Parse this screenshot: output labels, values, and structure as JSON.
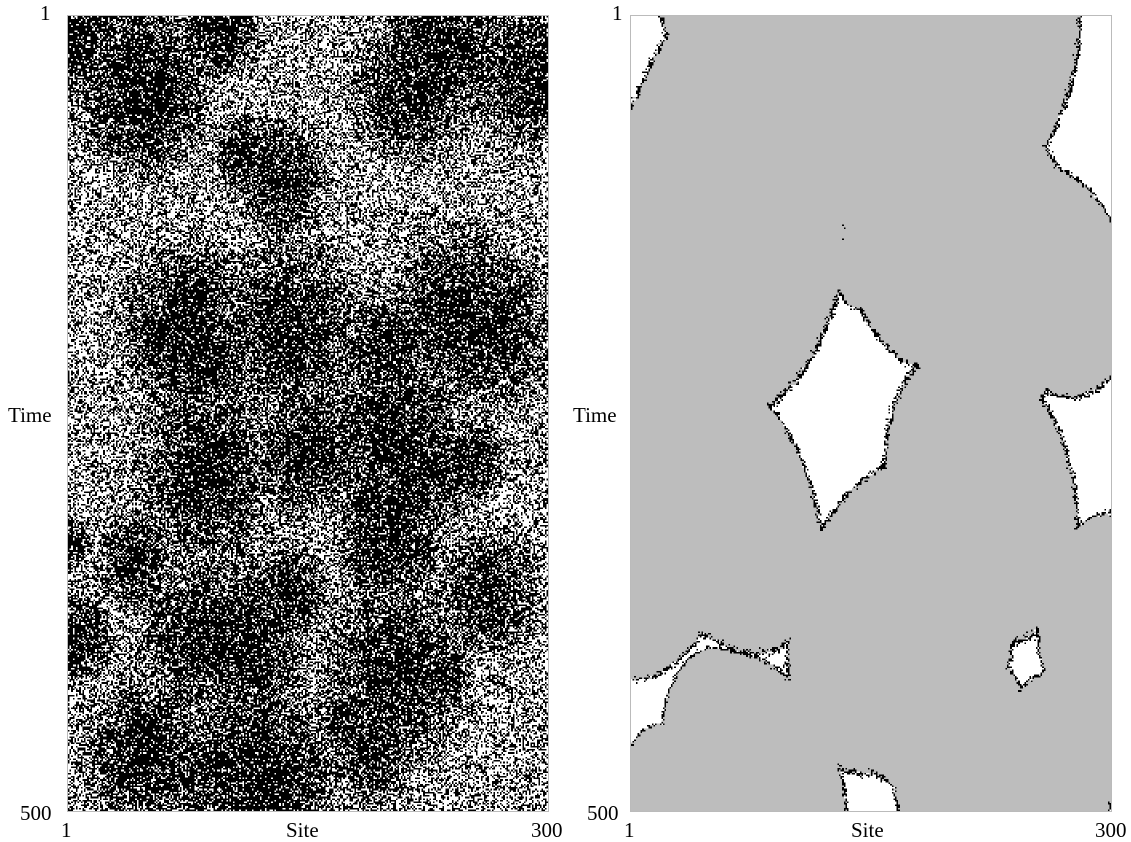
{
  "panels": [
    {
      "id": "raw",
      "x_axis": {
        "label": "Site",
        "start": "1",
        "end": "300"
      },
      "y_axis": {
        "label": "Time",
        "start": "1",
        "end": "500"
      },
      "colors": {
        "background": "#ffffff",
        "cell_on": "#000000"
      }
    },
    {
      "id": "filtered",
      "x_axis": {
        "label": "Site",
        "start": "1",
        "end": "300"
      },
      "y_axis": {
        "label": "Time",
        "start": "1",
        "end": "500"
      },
      "colors": {
        "background": "#ffffff",
        "domain": "#bdbdbd",
        "defect": "#000000"
      }
    }
  ]
}
